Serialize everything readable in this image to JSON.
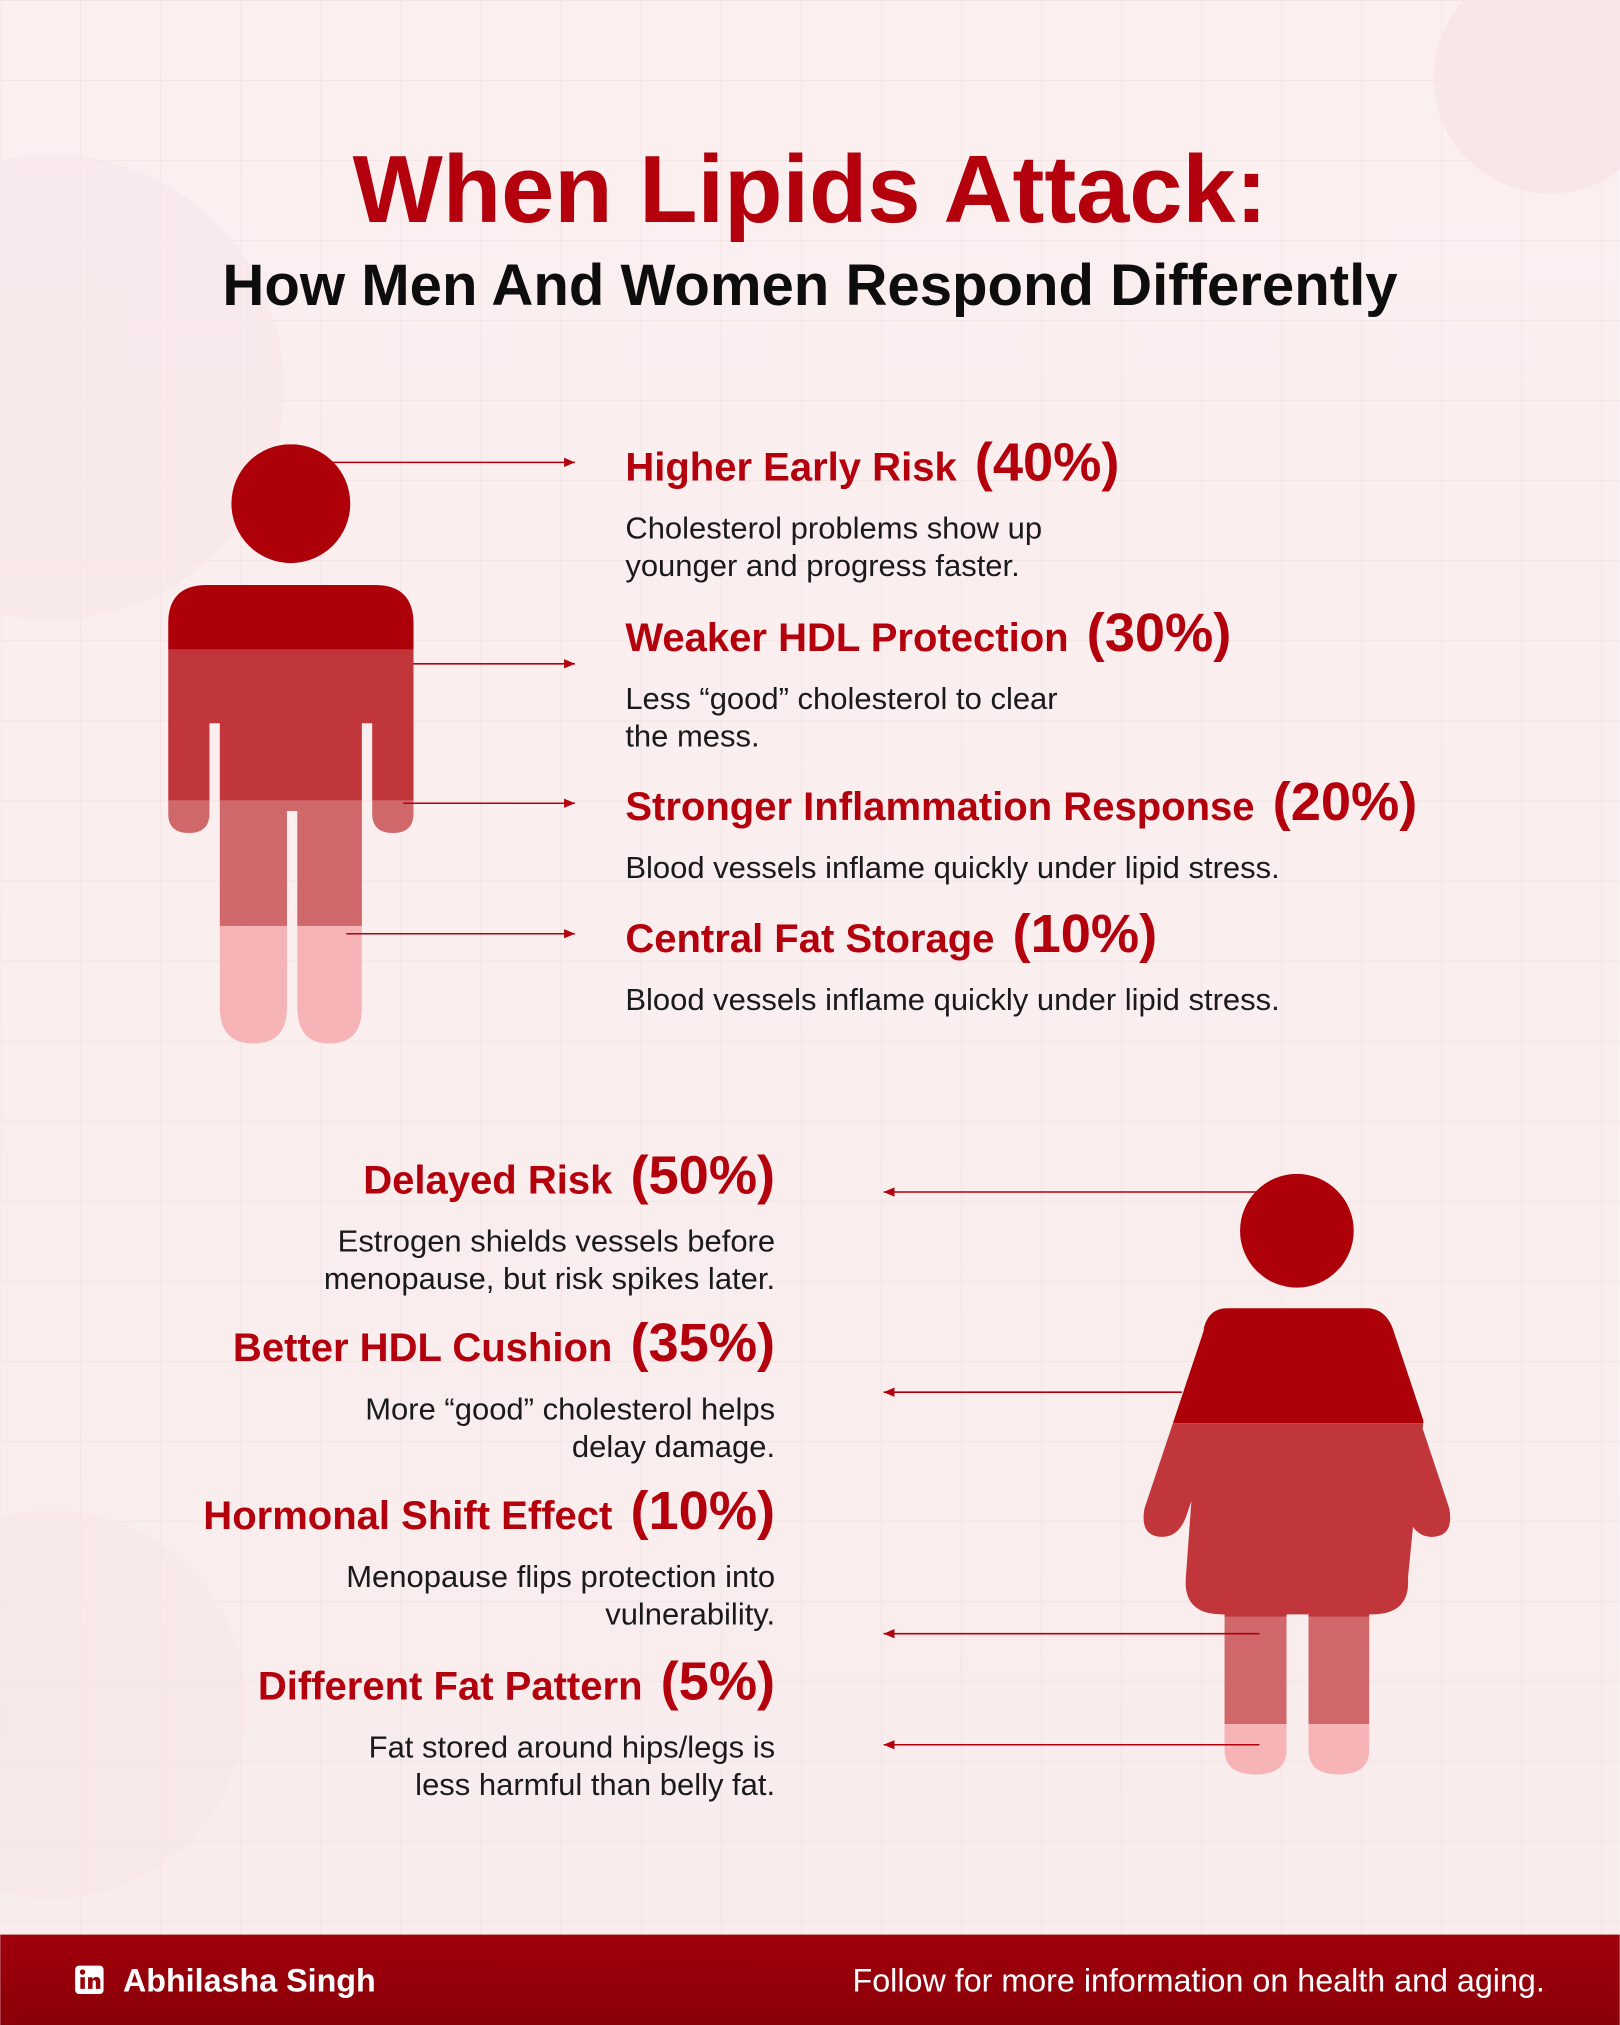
{
  "header": {
    "title": "When Lipids Attack:",
    "subtitle": "How Men And Women Respond Differently"
  },
  "men": {
    "items": [
      {
        "label": "Higher Early Risk",
        "percent": "(40%)",
        "lines": [
          "Cholesterol problems show up",
          "younger and progress faster."
        ]
      },
      {
        "label": "Weaker HDL Protection",
        "percent": "(30%)",
        "lines": [
          "Less “good” cholesterol to clear",
          "the mess."
        ]
      },
      {
        "label": "Stronger Inflammation Response",
        "percent": "(20%)",
        "lines": [
          "Blood vessels inflame quickly under lipid stress."
        ]
      },
      {
        "label": "Central Fat Storage",
        "percent": "(10%)",
        "lines": [
          "Blood vessels inflame quickly under lipid stress."
        ]
      }
    ]
  },
  "women": {
    "items": [
      {
        "label": "Delayed Risk",
        "percent": "(50%)",
        "lines": [
          "Estrogen shields vessels before",
          "menopause, but risk spikes later."
        ]
      },
      {
        "label": "Better HDL Cushion",
        "percent": "(35%)",
        "lines": [
          "More “good” cholesterol helps",
          "delay damage."
        ]
      },
      {
        "label": "Hormonal Shift Effect",
        "percent": "(10%)",
        "lines": [
          "Menopause flips protection into",
          "vulnerability."
        ]
      },
      {
        "label": "Different Fat Pattern",
        "percent": "(5%)",
        "lines": [
          "Fat stored around hips/legs is",
          "less harmful than belly fat."
        ]
      }
    ]
  },
  "footer": {
    "author": "Abhilasha Singh",
    "tagline": "Follow for more information on health and aging."
  }
}
